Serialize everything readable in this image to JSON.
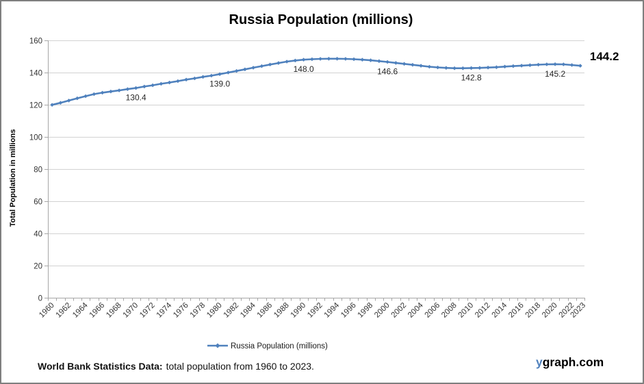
{
  "title": "Russia Population (millions)",
  "y_axis_title": "Total Population in millions",
  "legend": {
    "label": "Russia Population (millions)"
  },
  "footer": {
    "bold": "World Bank Statistics Data:",
    "rest": "total population from 1960 to 2023."
  },
  "brand": {
    "blue": "y",
    "rest": "graph.com"
  },
  "end_label": "144.2",
  "colors": {
    "line": "#4f81bd",
    "grid": "#d2d2d2",
    "axis": "#a6a6a6",
    "tick_text": "#333333",
    "label_text": "#262626",
    "title_text": "#000000",
    "brand_blue": "#4f81bd",
    "border": "#7f7f7f"
  },
  "chart_data": {
    "type": "line",
    "title": "Russia Population (millions)",
    "xlabel": "",
    "ylabel": "Total Population in millions",
    "ylim": [
      0,
      160
    ],
    "ytick_step": 20,
    "grid": true,
    "legend_position": "bottom",
    "x": [
      1960,
      1961,
      1962,
      1963,
      1964,
      1965,
      1966,
      1967,
      1968,
      1969,
      1970,
      1971,
      1972,
      1973,
      1974,
      1975,
      1976,
      1977,
      1978,
      1979,
      1980,
      1981,
      1982,
      1983,
      1984,
      1985,
      1986,
      1987,
      1988,
      1989,
      1990,
      1991,
      1992,
      1993,
      1994,
      1995,
      1996,
      1997,
      1998,
      1999,
      2000,
      2001,
      2002,
      2003,
      2004,
      2005,
      2006,
      2007,
      2008,
      2009,
      2010,
      2011,
      2012,
      2013,
      2014,
      2015,
      2016,
      2017,
      2018,
      2019,
      2020,
      2021,
      2022,
      2023
    ],
    "series": [
      {
        "name": "Russia Population (millions)",
        "values": [
          119.9,
          121.2,
          122.6,
          124.0,
          125.3,
          126.6,
          127.5,
          128.2,
          128.9,
          129.7,
          130.4,
          131.3,
          132.1,
          133.0,
          133.8,
          134.7,
          135.6,
          136.4,
          137.3,
          138.1,
          139.0,
          140.0,
          141.0,
          142.0,
          143.0,
          144.0,
          145.0,
          145.9,
          146.8,
          147.5,
          148.0,
          148.3,
          148.5,
          148.6,
          148.6,
          148.5,
          148.3,
          148.0,
          147.6,
          147.1,
          146.6,
          146.0,
          145.4,
          144.8,
          144.2,
          143.6,
          143.2,
          142.9,
          142.7,
          142.7,
          142.8,
          142.9,
          143.1,
          143.3,
          143.7,
          144.0,
          144.3,
          144.6,
          144.9,
          145.1,
          145.2,
          145.1,
          144.7,
          144.2
        ]
      }
    ],
    "xtick_labels": [
      "1960",
      "1962",
      "1964",
      "1966",
      "1968",
      "1970",
      "1972",
      "1974",
      "1976",
      "1978",
      "1980",
      "1982",
      "1984",
      "1986",
      "1988",
      "1990",
      "1992",
      "1994",
      "1996",
      "1998",
      "2000",
      "2002",
      "2004",
      "2006",
      "2008",
      "2010",
      "2012",
      "2014",
      "2016",
      "2018",
      "2020",
      "2022",
      "2023"
    ],
    "point_labels": [
      {
        "year": 1970,
        "value": 130.4,
        "text": "130.4"
      },
      {
        "year": 1980,
        "value": 139.0,
        "text": "139.0"
      },
      {
        "year": 1990,
        "value": 148.0,
        "text": "148.0"
      },
      {
        "year": 2000,
        "value": 146.6,
        "text": "146.6"
      },
      {
        "year": 2010,
        "value": 142.8,
        "text": "142.8"
      },
      {
        "year": 2020,
        "value": 145.2,
        "text": "145.2"
      }
    ],
    "end_label": {
      "year": 2023,
      "value": 144.2,
      "text": "144.2"
    }
  }
}
